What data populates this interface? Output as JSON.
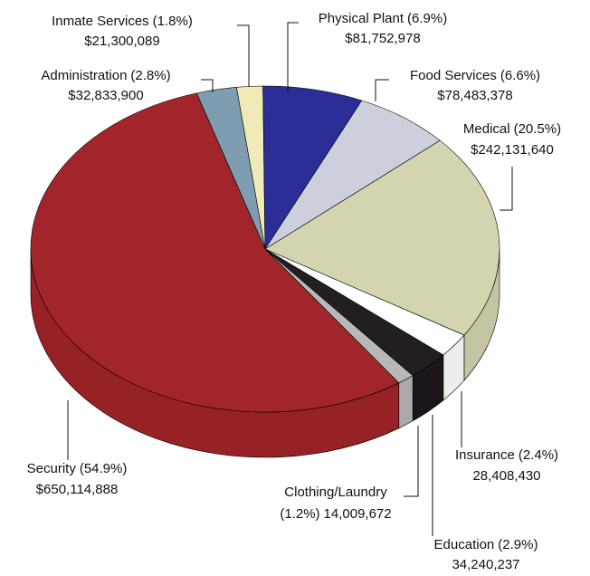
{
  "chart_data": {
    "type": "pie3d",
    "categories": [
      "Administration",
      "Inmate Services",
      "Physical Plant",
      "Food Services",
      "Medical",
      "Insurance",
      "Education",
      "Clothing/Laundry",
      "Security"
    ],
    "values": [
      32833900,
      21300089,
      81752978,
      78483378,
      242131640,
      28408430,
      34240237,
      14009672,
      650114888
    ],
    "value_labels": [
      "$32,833,900",
      "$21,300,089",
      "$81,752,978",
      "$78,483,378",
      "$242,131,640",
      "28,408,430",
      "34,240,237",
      "14,009,672",
      "$650,114,888"
    ],
    "percents": [
      2.8,
      1.8,
      6.9,
      6.6,
      20.5,
      2.4,
      2.9,
      1.2,
      54.9
    ],
    "percent_labels": [
      "(2.8%)",
      "(1.8%)",
      "(6.9%)",
      "(6.6%)",
      "(20.5%)",
      "(2.4%)",
      "(2.9%)",
      "(1.2%)",
      "(54.9%)"
    ],
    "colors": [
      "#7f9db0",
      "#f0e9b8",
      "#2b2e96",
      "#cdd0dc",
      "#d4d4b0",
      "#ffffff",
      "#231f20",
      "#b8b8b8",
      "#a3252c"
    ]
  }
}
